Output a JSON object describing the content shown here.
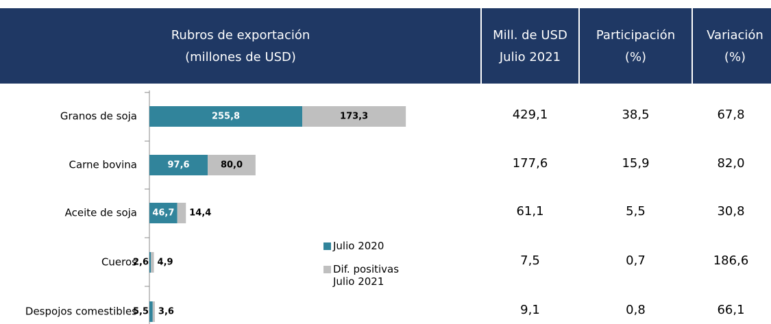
{
  "chart_data": {
    "type": "bar",
    "orientation": "horizontal",
    "stacked": true,
    "categories": [
      "Granos de soja",
      "Carne bovina",
      "Aceite de soja",
      "Cueros",
      "Despojos comestibles"
    ],
    "series": [
      {
        "name": "Julio 2020",
        "color": "#31849b",
        "values": [
          255.8,
          97.6,
          46.7,
          2.6,
          5.5
        ],
        "value_labels": [
          "255,8",
          "97,6",
          "46,7",
          "2,6",
          "5,5"
        ]
      },
      {
        "name": "Dif. positivas Julio 2021",
        "color": "#bfbfbf",
        "values": [
          173.3,
          80.0,
          14.4,
          4.9,
          3.6
        ],
        "value_labels": [
          "173,3",
          "80,0",
          "14,4",
          "4,9",
          "3,6"
        ]
      }
    ]
  },
  "table": {
    "header": [
      [
        "Rubros de exportación",
        "(millones de USD)"
      ],
      [
        "Mill. de USD",
        "Julio 2021"
      ],
      [
        "Participación",
        "(%)"
      ],
      [
        "Variación",
        "(%)"
      ]
    ],
    "rows": [
      [
        "429,1",
        "38,5",
        "67,8"
      ],
      [
        "177,6",
        "15,9",
        "82,0"
      ],
      [
        "61,1",
        "5,5",
        "30,8"
      ],
      [
        "7,5",
        "0,7",
        "186,6"
      ],
      [
        "9,1",
        "0,8",
        "66,1"
      ]
    ]
  }
}
